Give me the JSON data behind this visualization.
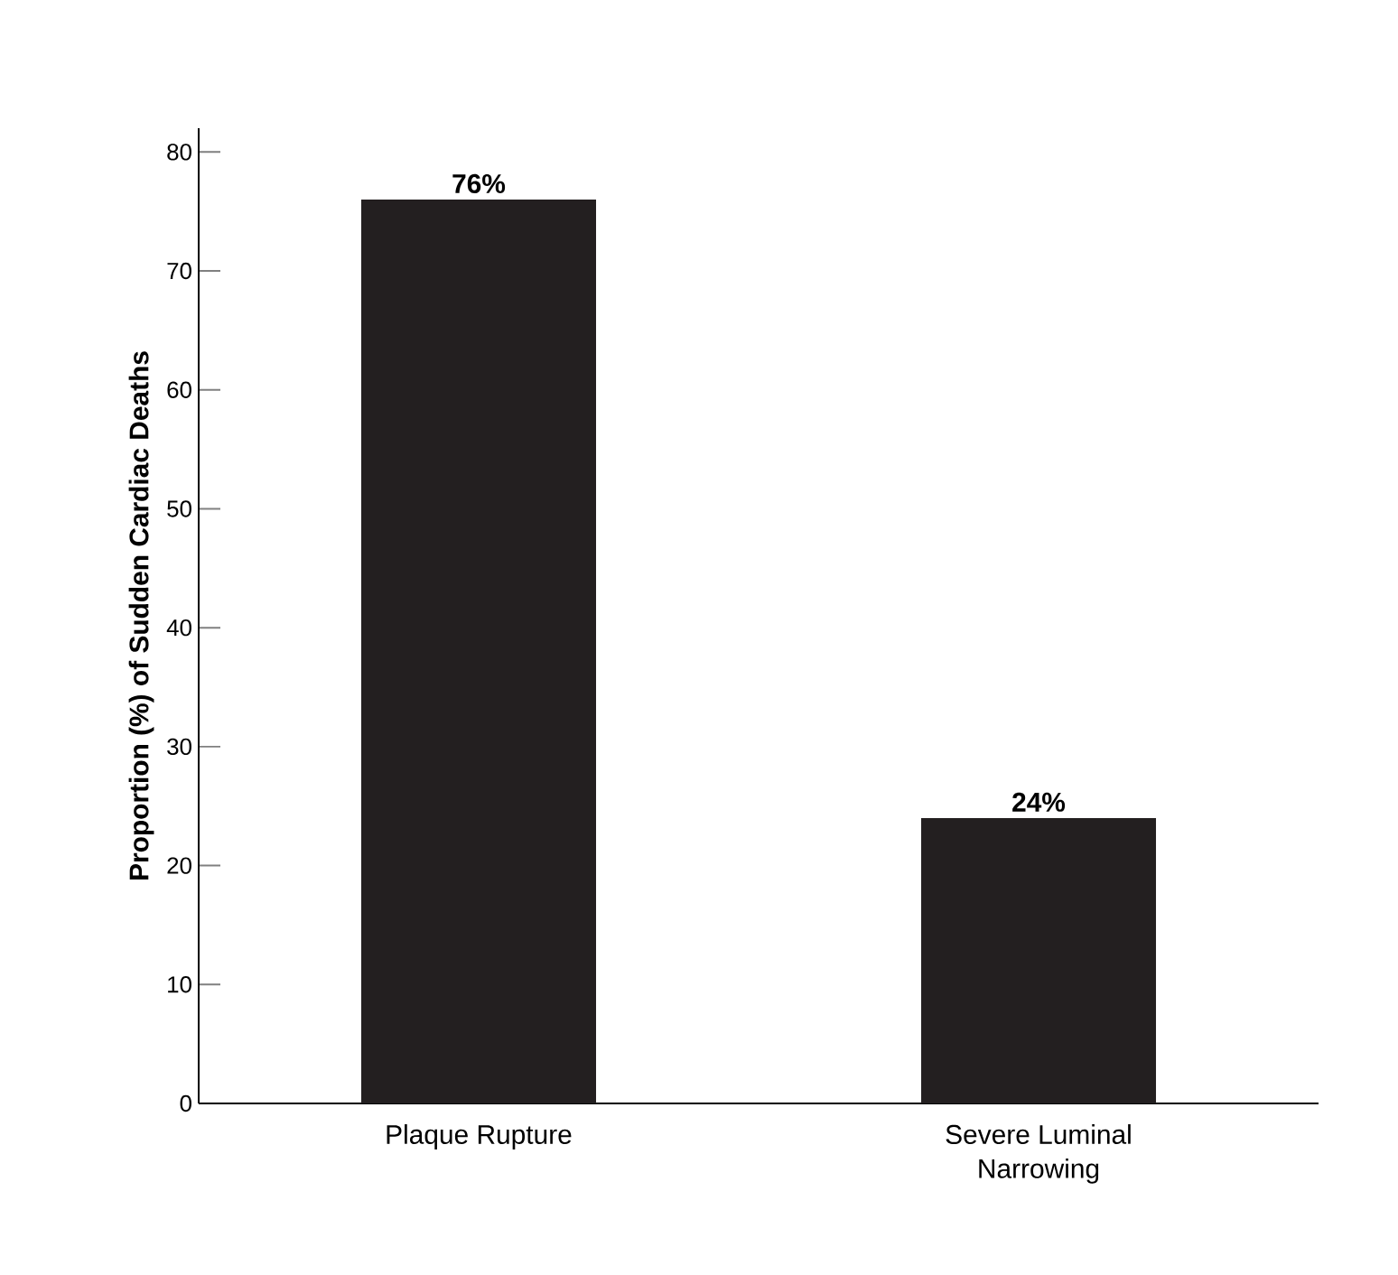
{
  "chart_data": {
    "type": "bar",
    "ylabel": "Proportion (%) of Sudden Cardiac Deaths",
    "categories": [
      "Plaque Rupture",
      "Severe Luminal\nNarrowing"
    ],
    "values": [
      76,
      24
    ],
    "value_labels": [
      "76%",
      "24%"
    ],
    "color": "#231f20",
    "ylim": [
      0,
      82
    ],
    "yticks": [
      0,
      10,
      20,
      30,
      40,
      50,
      60,
      70,
      80
    ],
    "grid": false
  }
}
